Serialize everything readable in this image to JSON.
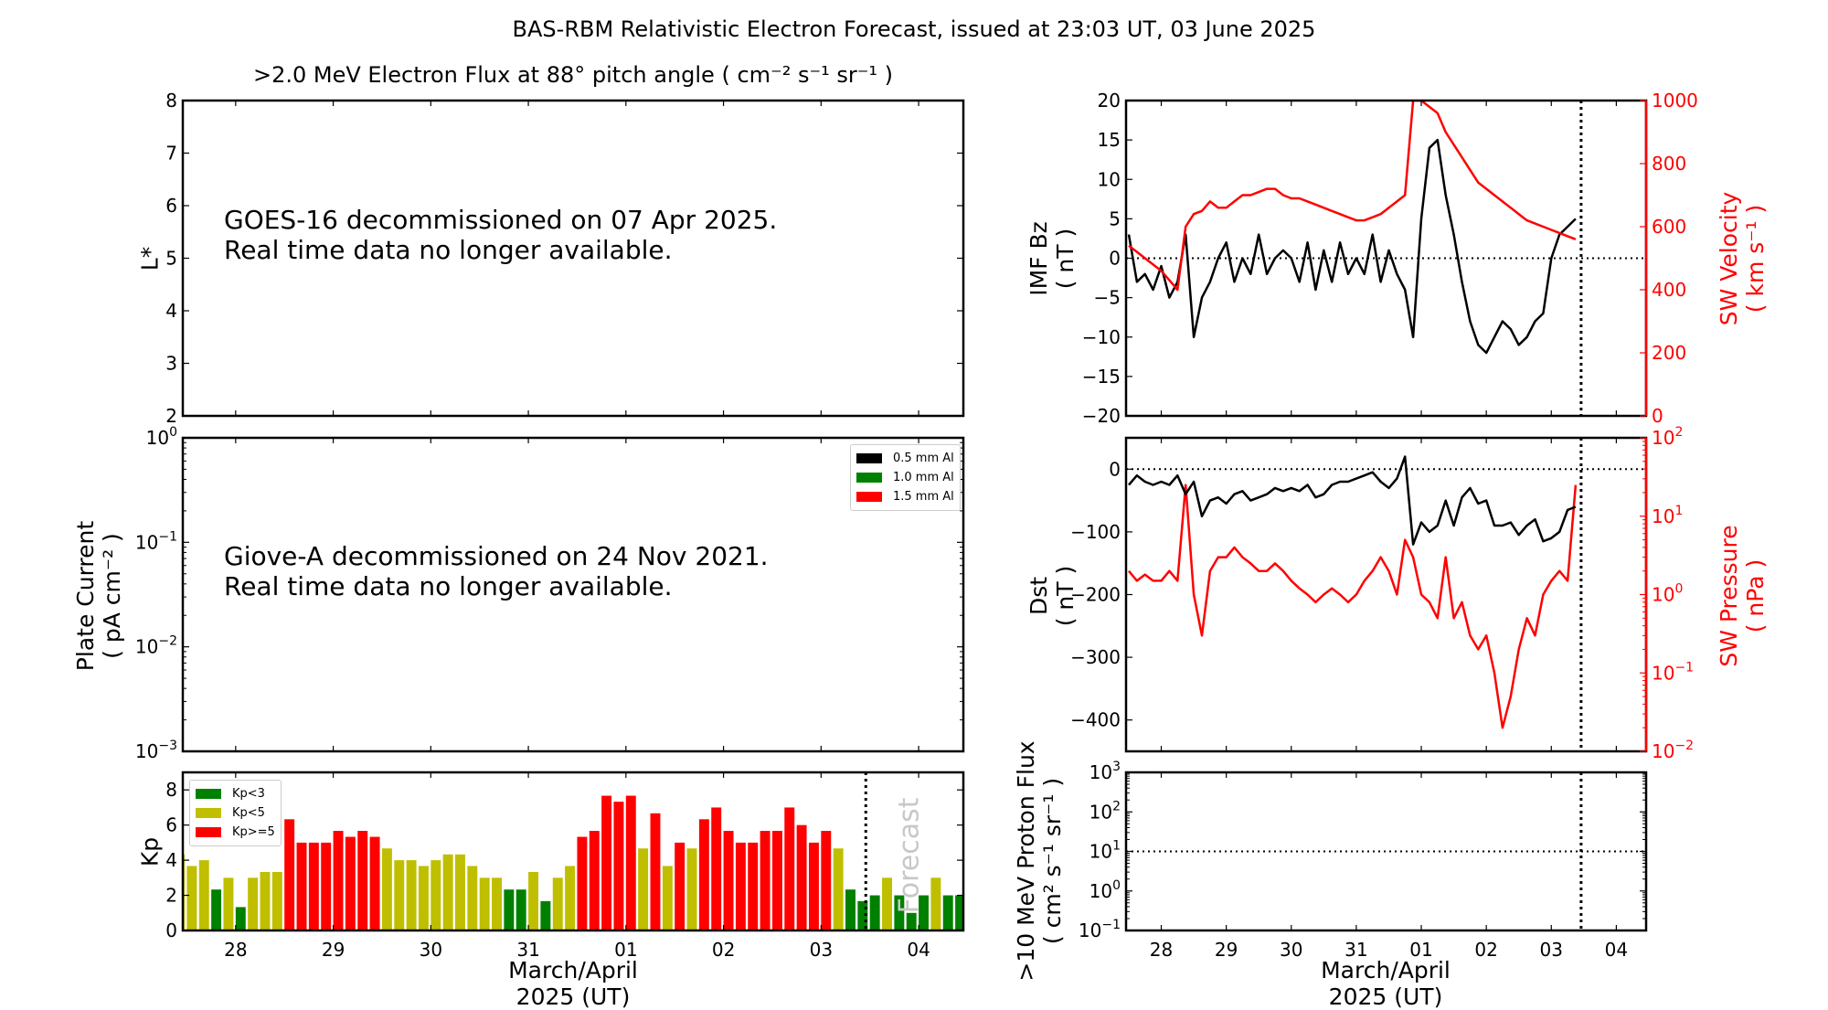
{
  "title": "BAS-RBM Relativistic Electron Forecast, issued at 23:03 UT, 03 June 2025",
  "colors": {
    "kp_low": "#008000",
    "kp_mid": "#bfbf00",
    "kp_high": "#ff0000",
    "secondary_axis": "#ff0000"
  },
  "x_axis": {
    "xlim": [
      "2025-03-27T11:00",
      "2025-04-04T11:00"
    ],
    "now_line": "2025-04-03T11:00",
    "ticks": [
      {
        "date": "2025-03-28",
        "label": "28"
      },
      {
        "date": "2025-03-29",
        "label": "29"
      },
      {
        "date": "2025-03-30",
        "label": "30"
      },
      {
        "date": "2025-03-31",
        "label": "31"
      },
      {
        "date": "2025-04-01",
        "label": "01"
      },
      {
        "date": "2025-04-02",
        "label": "02"
      },
      {
        "date": "2025-04-03",
        "label": "03"
      },
      {
        "date": "2025-04-04",
        "label": "04"
      }
    ],
    "label_line1": "March/April",
    "label_line2": "2025 (UT)"
  },
  "left": {
    "flux": {
      "subtitle": ">2.0 MeV Electron Flux at 88° pitch angle ( cm⁻² s⁻¹ sr⁻¹ )",
      "ylabel": "L*",
      "ylim": [
        2,
        8
      ],
      "yticks": [
        2,
        3,
        4,
        5,
        6,
        7,
        8
      ],
      "note_line1": "GOES-16 decommissioned on 07 Apr 2025.",
      "note_line2": "Real time data no longer available."
    },
    "plate": {
      "ylabel_line1": "Plate Current",
      "ylabel_line2": "( pA cm⁻² )",
      "ylim_log": [
        -3,
        0
      ],
      "yticks_exp": [
        -3,
        -2,
        -1,
        0
      ],
      "legend": [
        {
          "label": "0.5 mm Al",
          "color": "#000000"
        },
        {
          "label": "1.0 mm Al",
          "color": "#008000"
        },
        {
          "label": "1.5 mm Al",
          "color": "#ff0000"
        }
      ],
      "note_line1": "Giove-A decommissioned on 24 Nov 2021.",
      "note_line2": "Real time data no longer available."
    },
    "kp": {
      "ylabel": "Kp",
      "forecast_label": "Forecast",
      "legend": [
        {
          "label": "Kp<3",
          "color": "#008000"
        },
        {
          "label": "Kp<5",
          "color": "#bfbf00"
        },
        {
          "label": "Kp>=5",
          "color": "#ff0000"
        }
      ]
    }
  },
  "right": {
    "bz": {
      "ylabel_line1": "IMF Bz",
      "ylabel_line2": "( nT )",
      "ylim": [
        -20,
        20
      ],
      "yticks": [
        -20,
        -15,
        -10,
        -5,
        0,
        5,
        10,
        15,
        20
      ]
    },
    "velocity": {
      "ylabel_line1": "SW Velocity",
      "ylabel_line2": "( km s⁻¹ )",
      "ylim": [
        0,
        1000
      ],
      "yticks": [
        0,
        200,
        400,
        600,
        800,
        1000
      ]
    },
    "dst": {
      "ylabel_line1": "Dst",
      "ylabel_line2": "( nT )",
      "ylim": [
        -450,
        50
      ],
      "yticks": [
        -400,
        -300,
        -200,
        -100,
        0
      ]
    },
    "pressure": {
      "ylabel_line1": "SW Pressure",
      "ylabel_line2": "( nPa )",
      "ylim_log": [
        -2,
        2
      ],
      "yticks_exp": [
        -2,
        -1,
        0,
        1,
        2
      ]
    },
    "proton": {
      "ylabel_line1": ">10 MeV Proton Flux",
      "ylabel_line2": "( cm² s⁻¹ sr⁻¹ )",
      "ylim_log": [
        -1,
        3
      ],
      "yticks_exp": [
        -1,
        0,
        1,
        2,
        3
      ],
      "threshold": 10
    }
  },
  "chart_data": [
    {
      "type": "bar",
      "name": "Kp",
      "ylabel": "Kp",
      "ylim": [
        0,
        9
      ],
      "yticks": [
        0,
        2,
        4,
        6,
        8
      ],
      "start": "2025-03-27T09:00",
      "step_hours": 3,
      "forecast_from": "2025-04-03T12:00",
      "values": [
        4.33,
        3.67,
        4,
        2.33,
        3,
        1.33,
        3,
        3.33,
        3.33,
        6.33,
        5,
        5,
        5,
        5.67,
        5.33,
        5.67,
        5.33,
        4.67,
        4,
        4,
        3.67,
        4,
        4.33,
        4.33,
        3.67,
        3,
        3,
        2.33,
        2.33,
        3.33,
        1.67,
        3,
        3.67,
        5.33,
        5.67,
        7.67,
        7.33,
        7.67,
        4.67,
        6.67,
        3.67,
        5,
        4.67,
        6.33,
        7,
        5.67,
        5,
        5,
        5.67,
        5.67,
        7,
        6,
        5,
        5.67,
        4.67,
        2.33,
        1.67,
        2,
        3,
        2,
        1,
        2,
        3,
        2,
        2
      ]
    },
    {
      "type": "line",
      "start": "2025-03-27T12:00",
      "step_hours": 3,
      "series": [
        {
          "name": "IMF Bz",
          "color": "#000000",
          "values": [
            3,
            -3,
            -2,
            -4,
            -1,
            -5,
            -3,
            3,
            -10,
            -5,
            -3,
            0,
            2,
            -3,
            0,
            -2,
            3,
            -2,
            0,
            1,
            0,
            -3,
            2,
            -4,
            1,
            -3,
            2,
            -2,
            0,
            -2,
            3,
            -3,
            1,
            -2,
            -4,
            -10,
            5,
            14,
            15,
            8,
            3,
            -3,
            -8,
            -11,
            -12,
            -10,
            -8,
            -9,
            -11,
            -10,
            -8,
            -7,
            0,
            3,
            4,
            5
          ]
        },
        {
          "name": "SW Velocity",
          "color": "#ff0000",
          "values": [
            540,
            520,
            500,
            480,
            460,
            430,
            400,
            600,
            640,
            650,
            680,
            660,
            660,
            680,
            700,
            700,
            710,
            720,
            720,
            700,
            690,
            690,
            680,
            670,
            660,
            650,
            640,
            630,
            620,
            620,
            630,
            640,
            660,
            680,
            700,
            1000,
            1000,
            980,
            960,
            900,
            860,
            820,
            780,
            740,
            720,
            700,
            680,
            660,
            640,
            620,
            610,
            600,
            590,
            580,
            570,
            560
          ]
        },
        {
          "name": "Dst",
          "color": "#000000",
          "values": [
            -25,
            -10,
            -20,
            -25,
            -20,
            -25,
            -10,
            -40,
            -20,
            -75,
            -50,
            -45,
            -55,
            -40,
            -35,
            -50,
            -45,
            -40,
            -30,
            -35,
            -30,
            -35,
            -25,
            -45,
            -40,
            -25,
            -20,
            -20,
            -15,
            -10,
            -5,
            -20,
            -30,
            -15,
            20,
            -120,
            -85,
            -100,
            -90,
            -50,
            -90,
            -45,
            -30,
            -55,
            -50,
            -90,
            -90,
            -85,
            -105,
            -90,
            -80,
            -115,
            -110,
            -100,
            -65,
            -60
          ]
        },
        {
          "name": "SW Pressure",
          "color": "#ff0000",
          "values": [
            2,
            1.5,
            1.8,
            1.5,
            1.5,
            2,
            1.5,
            25,
            1,
            0.3,
            2,
            3,
            3,
            4,
            3,
            2.5,
            2,
            2,
            2.5,
            2,
            1.5,
            1.2,
            1,
            0.8,
            1,
            1.2,
            1,
            0.8,
            1,
            1.5,
            2,
            3,
            2,
            1,
            5,
            3,
            1,
            0.8,
            0.5,
            3,
            0.5,
            0.8,
            0.3,
            0.2,
            0.3,
            0.1,
            0.02,
            0.05,
            0.2,
            0.5,
            0.3,
            1,
            1.5,
            2,
            1.5,
            25
          ]
        }
      ]
    }
  ]
}
